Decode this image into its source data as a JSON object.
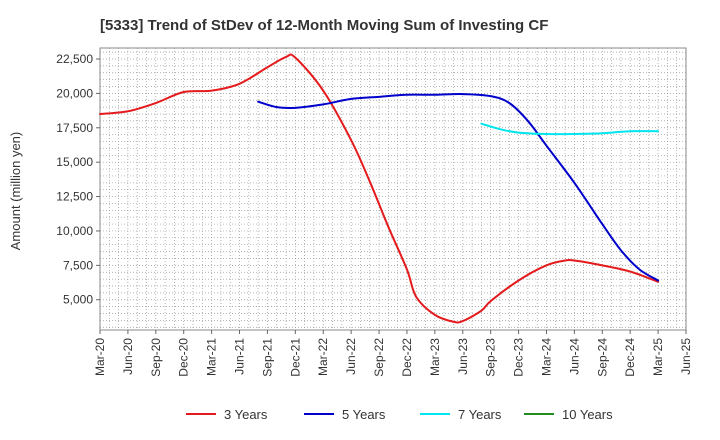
{
  "chart_data": {
    "type": "line",
    "title": "[5333]  Trend of StDev of 12-Month Moving Sum of Investing CF",
    "ylabel": "Amount (million yen)",
    "xlabel": "",
    "ylim": [
      2800,
      23300
    ],
    "yticks": [
      5000,
      7500,
      10000,
      12500,
      15000,
      17500,
      20000,
      22500
    ],
    "ytick_labels": [
      "5,000",
      "7,500",
      "10,000",
      "12,500",
      "15,000",
      "17,500",
      "20,000",
      "22,500"
    ],
    "xlim": [
      "Mar-20",
      "Jun-25"
    ],
    "x_tick_labels": [
      "Mar-20",
      "Jun-20",
      "Sep-20",
      "Dec-20",
      "Mar-21",
      "Jun-21",
      "Sep-21",
      "Dec-21",
      "Mar-22",
      "Jun-22",
      "Sep-22",
      "Dec-22",
      "Mar-23",
      "Jun-23",
      "Sep-23",
      "Dec-23",
      "Mar-24",
      "Jun-24",
      "Sep-24",
      "Dec-24",
      "Mar-25",
      "Jun-25"
    ],
    "grid": true,
    "legend": "bottom",
    "series": [
      {
        "name": "3 Years",
        "color": "#e41a1c",
        "points": [
          [
            "Mar-20",
            18500
          ],
          [
            "Jun-20",
            18700
          ],
          [
            "Sep-20",
            19300
          ],
          [
            "Dec-20",
            20100
          ],
          [
            "Mar-21",
            20200
          ],
          [
            "Jun-21",
            20700
          ],
          [
            "Sep-21",
            21900
          ],
          [
            "Nov-21",
            22650
          ],
          [
            "Dec-21",
            22600
          ],
          [
            "Mar-22",
            20200
          ],
          [
            "Jun-22",
            16600
          ],
          [
            "Aug-22",
            13600
          ],
          [
            "Oct-22",
            10300
          ],
          [
            "Dec-22",
            7200
          ],
          [
            "Jan-23",
            5200
          ],
          [
            "Mar-23",
            3900
          ],
          [
            "May-23",
            3400
          ],
          [
            "Jun-23",
            3450
          ],
          [
            "Aug-23",
            4200
          ],
          [
            "Sep-23",
            4900
          ],
          [
            "Dec-23",
            6400
          ],
          [
            "Mar-24",
            7500
          ],
          [
            "May-24",
            7850
          ],
          [
            "Jun-24",
            7850
          ],
          [
            "Sep-24",
            7500
          ],
          [
            "Dec-24",
            7050
          ],
          [
            "Mar-25",
            6300
          ]
        ]
      },
      {
        "name": "5 Years",
        "color": "#0000cc",
        "points": [
          [
            "Aug-21",
            19400
          ],
          [
            "Oct-21",
            19000
          ],
          [
            "Dec-21",
            18950
          ],
          [
            "Mar-22",
            19200
          ],
          [
            "Jun-22",
            19600
          ],
          [
            "Sep-22",
            19750
          ],
          [
            "Dec-22",
            19900
          ],
          [
            "Mar-23",
            19900
          ],
          [
            "Jun-23",
            19950
          ],
          [
            "Sep-23",
            19800
          ],
          [
            "Nov-23",
            19300
          ],
          [
            "Jan-24",
            18000
          ],
          [
            "Mar-24",
            16200
          ],
          [
            "Jun-24",
            13500
          ],
          [
            "Sep-24",
            10500
          ],
          [
            "Nov-24",
            8600
          ],
          [
            "Jan-25",
            7200
          ],
          [
            "Mar-25",
            6400
          ]
        ]
      },
      {
        "name": "7 Years",
        "color": "#00e5ee",
        "points": [
          [
            "Aug-23",
            17800
          ],
          [
            "Oct-23",
            17400
          ],
          [
            "Dec-23",
            17150
          ],
          [
            "Mar-24",
            17050
          ],
          [
            "Jun-24",
            17050
          ],
          [
            "Sep-24",
            17100
          ],
          [
            "Dec-24",
            17250
          ],
          [
            "Mar-25",
            17250
          ]
        ]
      },
      {
        "name": "10 Years",
        "color": "#228b22",
        "points": []
      }
    ]
  }
}
